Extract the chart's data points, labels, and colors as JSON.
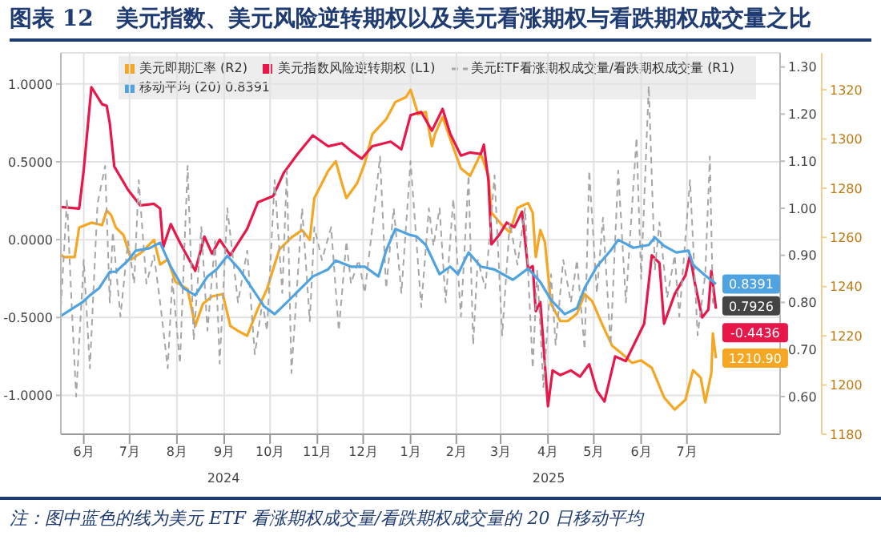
{
  "chart_data": {
    "type": "line",
    "title": "图表 12　美元指数、美元风险逆转期权以及美元看涨期权与看跌期权成交量之比",
    "annotations": [
      "2024",
      "2025",
      "注：图中蓝色的线为美元 ETF 看涨期权成交量/看跌期权成交量的 20 日移动平均"
    ],
    "xlim": [
      "2024-06-01",
      "2025-09-15"
    ],
    "xticks": [
      {
        "value": "2024-06-16",
        "label": "6月"
      },
      {
        "value": "2024-07-16",
        "label": "7月"
      },
      {
        "value": "2024-08-16",
        "label": "8月"
      },
      {
        "value": "2024-09-16",
        "label": "9月"
      },
      {
        "value": "2024-10-16",
        "label": "10月"
      },
      {
        "value": "2024-11-16",
        "label": "11月"
      },
      {
        "value": "2024-12-16",
        "label": "12月"
      },
      {
        "value": "2025-01-16",
        "label": "1月"
      },
      {
        "value": "2025-02-15",
        "label": "2月"
      },
      {
        "value": "2025-03-16",
        "label": "3月"
      },
      {
        "value": "2025-04-16",
        "label": "4月"
      },
      {
        "value": "2025-05-16",
        "label": "5月"
      },
      {
        "value": "2025-06-16",
        "label": "6月"
      },
      {
        "value": "2025-07-16",
        "label": "7月"
      }
    ],
    "ylim": [
      -1.25,
      1.2
    ],
    "yticks": [
      {
        "value": -1,
        "label": "-1.0000"
      },
      {
        "value": -0.5,
        "label": "-0.5000"
      },
      {
        "value": 0,
        "label": "0.0000"
      },
      {
        "value": 0.5,
        "label": "0.5000"
      },
      {
        "value": 1,
        "label": "1.0000"
      }
    ],
    "y2lim": [
      0.52,
      1.33
    ],
    "y2ticks": [
      {
        "value": 0.6,
        "label": "0.60"
      },
      {
        "value": 0.7,
        "label": "0.70"
      },
      {
        "value": 0.8,
        "label": "0.80"
      },
      {
        "value": 0.9,
        "label": "0.90"
      },
      {
        "value": 1.0,
        "label": "1.00"
      },
      {
        "value": 1.1,
        "label": "1.10"
      },
      {
        "value": 1.2,
        "label": "1.20"
      },
      {
        "value": 1.3,
        "label": "1.30"
      }
    ],
    "y3lim": [
      1180,
      1335
    ],
    "y3ticks": [
      1180,
      1200,
      1220,
      1240,
      1260,
      1280,
      1300,
      1320
    ],
    "grid": true,
    "legend": "top",
    "series": [
      {
        "name": "美元即期汇率 (R2)",
        "color": "#f5a623",
        "axis": "y3",
        "x": [
          "2024-06-01",
          "2024-06-03",
          "2024-06-10",
          "2024-06-13",
          "2024-06-21",
          "2024-06-28",
          "2024-07-01",
          "2024-07-04",
          "2024-07-07",
          "2024-07-12",
          "2024-07-17",
          "2024-07-24",
          "2024-08-01",
          "2024-08-05",
          "2024-08-10",
          "2024-08-15",
          "2024-08-23",
          "2024-08-28",
          "2024-09-02",
          "2024-09-08",
          "2024-09-15",
          "2024-09-20",
          "2024-09-25",
          "2024-10-01",
          "2024-10-08",
          "2024-10-14",
          "2024-10-22",
          "2024-10-30",
          "2024-11-06",
          "2024-11-11",
          "2024-11-14",
          "2024-11-23",
          "2024-11-28",
          "2024-12-02",
          "2024-12-05",
          "2024-12-12",
          "2024-12-17",
          "2024-12-22",
          "2024-12-31",
          "2025-01-06",
          "2025-01-13",
          "2025-01-16",
          "2025-01-21",
          "2025-01-26",
          "2025-01-30",
          "2025-02-01",
          "2025-02-06",
          "2025-02-11",
          "2025-02-18",
          "2025-02-24",
          "2025-03-03",
          "2025-03-08",
          "2025-03-10",
          "2025-03-17",
          "2025-03-22",
          "2025-03-27",
          "2025-04-03",
          "2025-04-06",
          "2025-04-08",
          "2025-04-11",
          "2025-04-14",
          "2025-04-18",
          "2025-04-24",
          "2025-04-29",
          "2025-05-05",
          "2025-05-10",
          "2025-05-15",
          "2025-05-22",
          "2025-05-28",
          "2025-06-03",
          "2025-06-10",
          "2025-06-16",
          "2025-06-23",
          "2025-07-01",
          "2025-07-08",
          "2025-07-15",
          "2025-07-20",
          "2025-07-25",
          "2025-07-28",
          "2025-08-01",
          "2025-08-02",
          "2025-08-04"
        ],
        "values": [
          1253,
          1252,
          1252,
          1264,
          1266,
          1265,
          1271,
          1269,
          1264,
          1261,
          1251,
          1254,
          1259,
          1249,
          1251,
          1242,
          1239,
          1224,
          1233,
          1236,
          1237,
          1224,
          1222,
          1220,
          1231,
          1239,
          1255,
          1260,
          1263,
          1259,
          1276,
          1287,
          1291,
          1282,
          1276,
          1282,
          1290,
          1302,
          1308,
          1315,
          1317,
          1320,
          1310,
          1311,
          1297,
          1302,
          1309,
          1300,
          1288,
          1285,
          1294,
          1285,
          1270,
          1265,
          1262,
          1272,
          1274,
          1270,
          1252,
          1263,
          1258,
          1233,
          1226,
          1226,
          1229,
          1237,
          1234,
          1224,
          1216,
          1213,
          1209,
          1210,
          1207,
          1195,
          1190,
          1194,
          1206,
          1203,
          1193,
          1205,
          1221,
          1210.9
        ],
        "value_labels": [
          null,
          null,
          null,
          null,
          null,
          null,
          null,
          null,
          null,
          null,
          null,
          null,
          null,
          null,
          null,
          null,
          null,
          null,
          null,
          null,
          null,
          null,
          null,
          null,
          null,
          null,
          null,
          null,
          null,
          null,
          null,
          null,
          null,
          null,
          null,
          null,
          null,
          null,
          null,
          null,
          null,
          null,
          null,
          null,
          null,
          null,
          null,
          null,
          null,
          null,
          null,
          null,
          null,
          null,
          null,
          null,
          null,
          null,
          null,
          null,
          null,
          null,
          null,
          null,
          null,
          null,
          null,
          null,
          null,
          null,
          null,
          null,
          null,
          null,
          null,
          null,
          null,
          null,
          null,
          null,
          null,
          "1210.90"
        ]
      },
      {
        "name": "美元指数风险逆转期权 (L1)",
        "color": "#e8174a",
        "x": [
          "2024-06-01",
          "2024-06-13",
          "2024-06-16",
          "2024-06-21",
          "2024-06-28",
          "2024-07-01",
          "2024-07-03",
          "2024-07-06",
          "2024-07-15",
          "2024-07-23",
          "2024-08-01",
          "2024-08-05",
          "2024-08-07",
          "2024-08-12",
          "2024-08-18",
          "2024-08-28",
          "2024-09-03",
          "2024-09-08",
          "2024-09-13",
          "2024-09-20",
          "2024-10-01",
          "2024-10-08",
          "2024-10-18",
          "2024-10-25",
          "2024-11-03",
          "2024-11-13",
          "2024-11-23",
          "2024-12-02",
          "2024-12-08",
          "2024-12-15",
          "2024-12-22",
          "2025-01-03",
          "2025-01-10",
          "2025-01-16",
          "2025-01-23",
          "2025-01-30",
          "2025-02-06",
          "2025-02-11",
          "2025-02-18",
          "2025-02-24",
          "2025-03-03",
          "2025-03-05",
          "2025-03-08",
          "2025-03-10",
          "2025-03-15",
          "2025-03-20",
          "2025-03-25",
          "2025-03-30",
          "2025-04-03",
          "2025-04-06",
          "2025-04-08",
          "2025-04-11",
          "2025-04-16",
          "2025-04-19",
          "2025-04-24",
          "2025-05-01",
          "2025-05-07",
          "2025-05-13",
          "2025-05-18",
          "2025-05-23",
          "2025-05-30",
          "2025-06-06",
          "2025-06-13",
          "2025-06-18",
          "2025-06-23",
          "2025-06-28",
          "2025-07-01",
          "2025-07-08",
          "2025-07-15",
          "2025-07-18",
          "2025-07-21",
          "2025-07-26",
          "2025-07-30",
          "2025-08-01",
          "2025-08-04"
        ],
        "values": [
          0.21,
          0.2,
          0.45,
          0.98,
          0.87,
          0.86,
          0.75,
          0.47,
          0.32,
          0.22,
          0.23,
          0.2,
          -0.05,
          0.1,
          -0.02,
          -0.2,
          0.02,
          -0.09,
          0.0,
          -0.1,
          0.07,
          0.24,
          0.28,
          0.43,
          0.55,
          0.67,
          0.6,
          0.62,
          0.57,
          0.52,
          0.6,
          0.63,
          0.58,
          0.8,
          0.82,
          0.7,
          0.84,
          0.68,
          0.54,
          0.56,
          0.55,
          0.61,
          0.38,
          -0.03,
          0.03,
          0.11,
          0.08,
          0.18,
          -0.19,
          -0.17,
          -0.46,
          -0.4,
          -1.07,
          -0.84,
          -0.87,
          -0.84,
          -0.88,
          -0.8,
          -0.97,
          -1.04,
          -0.75,
          -0.78,
          -0.64,
          -0.54,
          -0.1,
          -0.15,
          -0.54,
          -0.35,
          -0.23,
          -0.1,
          -0.27,
          -0.5,
          -0.45,
          -0.2,
          -0.4436
        ],
        "value_labels": [
          null,
          null,
          null,
          null,
          null,
          null,
          null,
          null,
          null,
          null,
          null,
          null,
          null,
          null,
          null,
          null,
          null,
          null,
          null,
          null,
          null,
          null,
          null,
          null,
          null,
          null,
          null,
          null,
          null,
          null,
          null,
          null,
          null,
          null,
          null,
          null,
          null,
          null,
          null,
          null,
          null,
          null,
          null,
          null,
          null,
          null,
          null,
          null,
          null,
          null,
          null,
          null,
          null,
          null,
          null,
          null,
          null,
          null,
          null,
          null,
          null,
          null,
          null,
          null,
          null,
          null,
          null,
          null,
          null,
          null,
          null,
          null,
          null,
          null,
          "-0.4436"
        ]
      },
      {
        "name": "美元ETF看涨期权成交量/看跌期权成交量 (R1)",
        "color": "#a6a6a6",
        "axis": "y2",
        "line_style": "dashed",
        "x": [
          "2024-06-01",
          "2024-06-05",
          "2024-06-08",
          "2024-06-11",
          "2024-06-16",
          "2024-06-20",
          "2024-06-25",
          "2024-06-30",
          "2024-07-03",
          "2024-07-05",
          "2024-07-10",
          "2024-07-15",
          "2024-07-19",
          "2024-07-22",
          "2024-07-27",
          "2024-08-01",
          "2024-08-05",
          "2024-08-10",
          "2024-08-13",
          "2024-08-18",
          "2024-08-23",
          "2024-08-27",
          "2024-09-01",
          "2024-09-05",
          "2024-09-10",
          "2024-09-13",
          "2024-09-18",
          "2024-09-25",
          "2024-10-01",
          "2024-10-06",
          "2024-10-11",
          "2024-10-14",
          "2024-10-19",
          "2024-10-24",
          "2024-10-27",
          "2024-10-30",
          "2024-11-06",
          "2024-11-11",
          "2024-11-14",
          "2024-11-19",
          "2024-11-25",
          "2024-11-30",
          "2024-12-05",
          "2024-12-08",
          "2024-12-13",
          "2024-12-17",
          "2024-12-22",
          "2024-12-27",
          "2024-12-31",
          "2025-01-05",
          "2025-01-10",
          "2025-01-16",
          "2025-01-23",
          "2025-01-28",
          "2025-01-31",
          "2025-02-04",
          "2025-02-08",
          "2025-02-13",
          "2025-02-18",
          "2025-02-23",
          "2025-02-26",
          "2025-03-01",
          "2025-03-06",
          "2025-03-12",
          "2025-03-17",
          "2025-03-22",
          "2025-03-27",
          "2025-04-01",
          "2025-04-06",
          "2025-04-09",
          "2025-04-13",
          "2025-04-18",
          "2025-04-21",
          "2025-04-26",
          "2025-05-01",
          "2025-05-05",
          "2025-05-10",
          "2025-05-13",
          "2025-05-18",
          "2025-05-22",
          "2025-05-27",
          "2025-06-01",
          "2025-06-06",
          "2025-06-13",
          "2025-06-16",
          "2025-06-21",
          "2025-06-25",
          "2025-06-28",
          "2025-07-03",
          "2025-07-08",
          "2025-07-11",
          "2025-07-18",
          "2025-07-23",
          "2025-07-28",
          "2025-07-31",
          "2025-08-02",
          "2025-08-04"
        ],
        "values": [
          0.79,
          1.02,
          0.8,
          0.6,
          0.89,
          0.66,
          1.01,
          1.09,
          0.8,
          0.95,
          0.77,
          0.93,
          0.84,
          1.06,
          0.84,
          0.9,
          0.8,
          0.66,
          0.85,
          0.67,
          1.09,
          0.72,
          0.96,
          0.74,
          0.93,
          0.67,
          1.0,
          0.8,
          0.91,
          0.69,
          0.8,
          0.74,
          1.06,
          0.82,
          1.08,
          0.65,
          1.0,
          0.76,
          0.96,
          0.89,
          0.96,
          0.74,
          0.93,
          0.84,
          0.89,
          0.82,
          0.96,
          1.11,
          0.83,
          1.0,
          0.82,
          1.1,
          0.79,
          1.0,
          0.92,
          1.0,
          0.8,
          1.02,
          0.77,
          1.07,
          0.71,
          0.89,
          0.83,
          1.07,
          0.73,
          0.97,
          0.88,
          1.0,
          0.66,
          0.87,
          0.62,
          0.86,
          0.71,
          0.89,
          0.8,
          0.89,
          0.7,
          1.08,
          0.82,
          0.98,
          0.71,
          1.08,
          0.8,
          1.15,
          0.85,
          1.26,
          0.87,
          0.97,
          0.81,
          0.9,
          0.77,
          1.06,
          0.73,
          0.86,
          1.11,
          0.8,
          0.7926
        ],
        "value_labels": [
          null,
          null,
          null,
          null,
          null,
          null,
          null,
          null,
          null,
          null,
          null,
          null,
          null,
          null,
          null,
          null,
          null,
          null,
          null,
          null,
          null,
          null,
          null,
          null,
          null,
          null,
          null,
          null,
          null,
          null,
          null,
          null,
          null,
          null,
          null,
          null,
          null,
          null,
          null,
          null,
          null,
          null,
          null,
          null,
          null,
          null,
          null,
          null,
          null,
          null,
          null,
          null,
          null,
          null,
          null,
          null,
          null,
          null,
          null,
          null,
          null,
          null,
          null,
          null,
          null,
          null,
          null,
          null,
          null,
          null,
          null,
          null,
          null,
          null,
          null,
          null,
          null,
          null,
          null,
          null,
          null,
          null,
          null,
          null,
          null,
          null,
          null,
          null,
          null,
          null,
          null,
          null,
          null,
          null,
          null,
          null,
          "0.7926"
        ]
      },
      {
        "name": "移动平均 (20) 0.8391",
        "color": "#4fa3e0",
        "axis": "y2",
        "x": [
          "2024-06-01",
          "2024-06-10",
          "2024-06-15",
          "2024-06-20",
          "2024-06-26",
          "2024-07-03",
          "2024-07-07",
          "2024-07-15",
          "2024-07-20",
          "2024-07-29",
          "2024-08-05",
          "2024-08-12",
          "2024-08-20",
          "2024-08-28",
          "2024-09-05",
          "2024-09-11",
          "2024-09-18",
          "2024-09-26",
          "2024-10-05",
          "2024-10-12",
          "2024-10-19",
          "2024-10-27",
          "2024-11-04",
          "2024-11-13",
          "2024-11-23",
          "2024-11-28",
          "2024-12-08",
          "2024-12-17",
          "2024-12-26",
          "2024-12-31",
          "2025-01-06",
          "2025-01-15",
          "2025-01-20",
          "2025-01-26",
          "2025-02-04",
          "2025-02-11",
          "2025-02-16",
          "2025-02-23",
          "2025-03-03",
          "2025-03-12",
          "2025-03-24",
          "2025-04-03",
          "2025-04-11",
          "2025-04-18",
          "2025-04-27",
          "2025-05-05",
          "2025-05-10",
          "2025-05-18",
          "2025-05-27",
          "2025-06-01",
          "2025-06-11",
          "2025-06-21",
          "2025-06-25",
          "2025-07-01",
          "2025-07-09",
          "2025-07-17",
          "2025-07-20",
          "2025-07-27",
          "2025-08-04"
        ],
        "values": [
          0.771,
          0.79,
          0.8,
          0.815,
          0.83,
          0.865,
          0.865,
          0.889,
          0.91,
          0.915,
          0.927,
          0.876,
          0.831,
          0.815,
          0.855,
          0.87,
          0.899,
          0.87,
          0.826,
          0.792,
          0.775,
          0.8,
          0.826,
          0.855,
          0.87,
          0.889,
          0.876,
          0.876,
          0.855,
          0.91,
          0.956,
          0.944,
          0.94,
          0.922,
          0.86,
          0.876,
          0.86,
          0.906,
          0.876,
          0.87,
          0.848,
          0.872,
          0.843,
          0.805,
          0.775,
          0.788,
          0.831,
          0.876,
          0.91,
          0.933,
          0.916,
          0.922,
          0.938,
          0.92,
          0.906,
          0.91,
          0.88,
          0.86,
          0.8391
        ],
        "value_labels": [
          null,
          null,
          null,
          null,
          null,
          null,
          null,
          null,
          null,
          null,
          null,
          null,
          null,
          null,
          null,
          null,
          null,
          null,
          null,
          null,
          null,
          null,
          null,
          null,
          null,
          null,
          null,
          null,
          null,
          null,
          null,
          null,
          null,
          null,
          null,
          null,
          null,
          null,
          null,
          null,
          null,
          null,
          null,
          null,
          null,
          null,
          null,
          null,
          null,
          null,
          null,
          null,
          null,
          null,
          null,
          null,
          null,
          null,
          "0.8391"
        ]
      }
    ]
  }
}
